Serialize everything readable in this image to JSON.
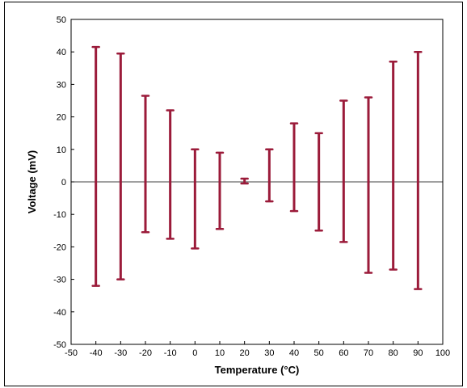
{
  "chart_data": {
    "type": "errorbar",
    "title": "",
    "xlabel": "Temperature (°C)",
    "ylabel": "Voltage (mV)",
    "xlim": [
      -50,
      100
    ],
    "ylim": [
      -50,
      50
    ],
    "xticks": [
      -50,
      -40,
      -30,
      -20,
      -10,
      0,
      10,
      20,
      30,
      40,
      50,
      60,
      70,
      80,
      90,
      100
    ],
    "yticks": [
      -50,
      -40,
      -30,
      -20,
      -10,
      0,
      10,
      20,
      30,
      40,
      50
    ],
    "grid": false,
    "zero_line": true,
    "legend": "none",
    "series": [
      {
        "color": "#9b1b3a",
        "points": [
          {
            "x": -40,
            "low": -32,
            "high": 41.5
          },
          {
            "x": -30,
            "low": -30,
            "high": 39.5
          },
          {
            "x": -20,
            "low": -15.5,
            "high": 26.5
          },
          {
            "x": -10,
            "low": -17.5,
            "high": 22
          },
          {
            "x": 0,
            "low": -20.5,
            "high": 10
          },
          {
            "x": 10,
            "low": -14.5,
            "high": 9
          },
          {
            "x": 20,
            "low": -0.5,
            "high": 1
          },
          {
            "x": 30,
            "low": -6,
            "high": 10
          },
          {
            "x": 40,
            "low": -9,
            "high": 18
          },
          {
            "x": 50,
            "low": -15,
            "high": 15
          },
          {
            "x": 60,
            "low": -18.5,
            "high": 25
          },
          {
            "x": 70,
            "low": -28,
            "high": 26
          },
          {
            "x": 80,
            "low": -27,
            "high": 37
          },
          {
            "x": 90,
            "low": -33,
            "high": 40
          }
        ]
      }
    ]
  }
}
